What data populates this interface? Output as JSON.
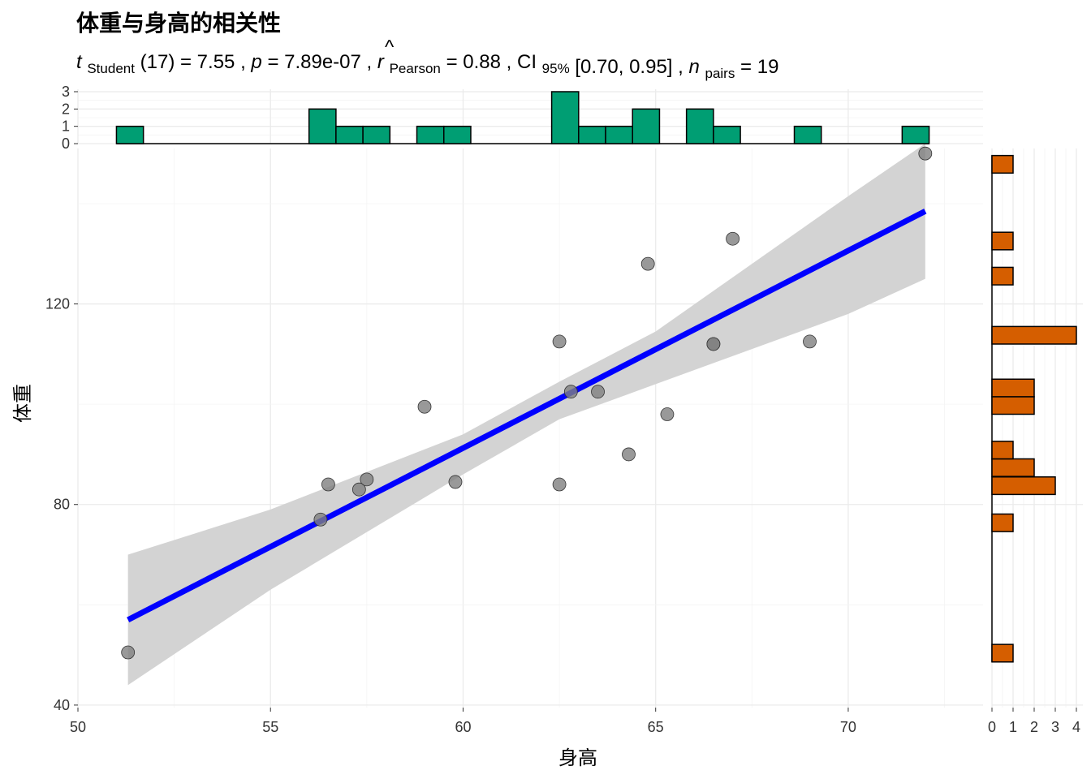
{
  "title": "体重与身高的相关性",
  "subtitle": {
    "t_symbol": "t",
    "t_sub": "Student",
    "df": "(17)",
    "t_value": "7.55",
    "p_symbol": "p",
    "p_value": "7.89e-07",
    "r_symbol": "r",
    "r_hat": "^",
    "r_sub": "Pearson",
    "r_value": "0.88",
    "ci_label": "CI",
    "ci_sub": "95%",
    "ci_value": "[0.70, 0.95]",
    "n_symbol": "n",
    "n_sub": "pairs",
    "n_value": "19"
  },
  "chart_data": [
    {
      "type": "scatter",
      "xlabel": "身高",
      "ylabel": "体重",
      "xlim": [
        50,
        73.5
      ],
      "ylim": [
        39.5,
        151
      ],
      "xticks": [
        50,
        55,
        60,
        65,
        70
      ],
      "yticks": [
        40,
        80,
        120
      ],
      "grid": true,
      "points": [
        {
          "x": 51.3,
          "y": 50.5
        },
        {
          "x": 56.3,
          "y": 77.0
        },
        {
          "x": 56.5,
          "y": 84.0
        },
        {
          "x": 57.3,
          "y": 83.0
        },
        {
          "x": 57.5,
          "y": 85.0
        },
        {
          "x": 59.0,
          "y": 99.5
        },
        {
          "x": 59.8,
          "y": 84.5
        },
        {
          "x": 62.5,
          "y": 112.5
        },
        {
          "x": 62.5,
          "y": 84.0
        },
        {
          "x": 62.8,
          "y": 102.5
        },
        {
          "x": 63.5,
          "y": 102.5
        },
        {
          "x": 64.3,
          "y": 90.0
        },
        {
          "x": 64.8,
          "y": 128.0
        },
        {
          "x": 65.3,
          "y": 98.0
        },
        {
          "x": 66.5,
          "y": 112.0
        },
        {
          "x": 66.5,
          "y": 112.0
        },
        {
          "x": 67.0,
          "y": 133.0
        },
        {
          "x": 69.0,
          "y": 112.5
        },
        {
          "x": 72.0,
          "y": 150.0
        }
      ],
      "regression_line": {
        "x": [
          51.3,
          72.0
        ],
        "y": [
          57.0,
          138.5
        ],
        "color": "#0000ff"
      },
      "confidence_band": {
        "x": [
          51.3,
          55.0,
          60.0,
          62.5,
          65.0,
          70.0,
          72.0
        ],
        "lower": [
          44.0,
          63.0,
          86.0,
          97.0,
          104.0,
          118.0,
          125.0
        ],
        "upper": [
          70.0,
          79.0,
          94.0,
          104.5,
          114.5,
          141.5,
          152.0
        ],
        "color": "#d3d3d3"
      },
      "point_color": "#808080"
    },
    {
      "type": "bar",
      "role": "x-marginal-histogram",
      "yticks": [
        0,
        1,
        2,
        3
      ],
      "bin_width": 0.7,
      "bins": [
        {
          "start": 51.0,
          "count": 1
        },
        {
          "start": 56.0,
          "count": 2
        },
        {
          "start": 56.7,
          "count": 1
        },
        {
          "start": 57.4,
          "count": 1
        },
        {
          "start": 58.8,
          "count": 1
        },
        {
          "start": 59.5,
          "count": 1
        },
        {
          "start": 62.3,
          "count": 3
        },
        {
          "start": 63.0,
          "count": 1
        },
        {
          "start": 63.7,
          "count": 1
        },
        {
          "start": 64.4,
          "count": 2
        },
        {
          "start": 65.8,
          "count": 2
        },
        {
          "start": 66.5,
          "count": 1
        },
        {
          "start": 68.6,
          "count": 1
        },
        {
          "start": 71.4,
          "count": 1
        }
      ],
      "color": "#009e73"
    },
    {
      "type": "bar",
      "role": "y-marginal-histogram",
      "xticks": [
        0,
        1,
        2,
        3,
        4
      ],
      "bin_width": 3.5,
      "bins": [
        {
          "start": 48.6,
          "count": 1
        },
        {
          "start": 74.6,
          "count": 1
        },
        {
          "start": 82.0,
          "count": 3
        },
        {
          "start": 85.6,
          "count": 2
        },
        {
          "start": 89.1,
          "count": 1
        },
        {
          "start": 98.0,
          "count": 2
        },
        {
          "start": 101.5,
          "count": 2
        },
        {
          "start": 112.0,
          "count": 4
        },
        {
          "start": 123.8,
          "count": 1
        },
        {
          "start": 130.8,
          "count": 1
        },
        {
          "start": 146.1,
          "count": 1
        }
      ],
      "color": "#d55e00"
    }
  ]
}
